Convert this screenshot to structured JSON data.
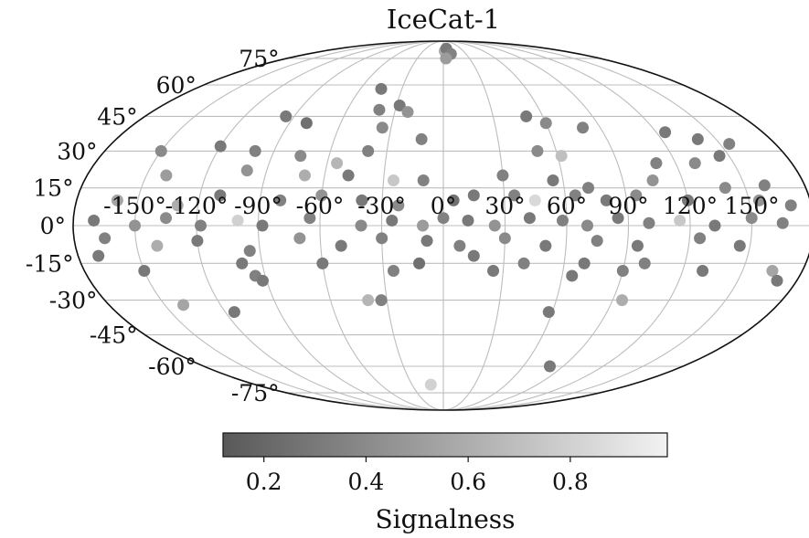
{
  "chart_data": {
    "type": "scatter",
    "projection": "mollweide",
    "title": "IceCat-1",
    "grid": true,
    "lon_ticks": [
      "-150°",
      "-120°",
      "-90°",
      "-60°",
      "-30°",
      "0°",
      "30°",
      "60°",
      "90°",
      "120°",
      "150°"
    ],
    "lat_ticks": [
      "75°",
      "60°",
      "45°",
      "30°",
      "15°",
      "0°",
      "-15°",
      "-30°",
      "-45°",
      "-60°",
      "-75°"
    ],
    "colorbar": {
      "label": "Signalness",
      "range": [
        0.12,
        0.99
      ],
      "ticks": [
        "0.2",
        "0.4",
        "0.6",
        "0.8"
      ],
      "colors": [
        "#595959",
        "#f2f2f2"
      ]
    },
    "marker_color_scale": "grey",
    "points_note": "lon / lat in degrees, s = signalness",
    "points": [
      {
        "lon": 2,
        "lat": 80,
        "s": 0.6
      },
      {
        "lon": 5,
        "lat": 82,
        "s": 0.3
      },
      {
        "lon": 10,
        "lat": 78,
        "s": 0.35
      },
      {
        "lon": 3,
        "lat": 75,
        "s": 0.5
      },
      {
        "lon": -45,
        "lat": 58,
        "s": 0.3
      },
      {
        "lon": -40,
        "lat": 48,
        "s": 0.35
      },
      {
        "lon": -28,
        "lat": 50,
        "s": 0.3
      },
      {
        "lon": -22,
        "lat": 47,
        "s": 0.45
      },
      {
        "lon": -95,
        "lat": 45,
        "s": 0.3
      },
      {
        "lon": -80,
        "lat": 42,
        "s": 0.25
      },
      {
        "lon": -35,
        "lat": 40,
        "s": 0.4
      },
      {
        "lon": -12,
        "lat": 35,
        "s": 0.35
      },
      {
        "lon": 50,
        "lat": 45,
        "s": 0.3
      },
      {
        "lon": 60,
        "lat": 42,
        "s": 0.4
      },
      {
        "lon": 80,
        "lat": 40,
        "s": 0.35
      },
      {
        "lon": 125,
        "lat": 38,
        "s": 0.3
      },
      {
        "lon": 140,
        "lat": 35,
        "s": 0.3
      },
      {
        "lon": 155,
        "lat": 33,
        "s": 0.35
      },
      {
        "lon": -150,
        "lat": 30,
        "s": 0.4
      },
      {
        "lon": -120,
        "lat": 32,
        "s": 0.3
      },
      {
        "lon": -100,
        "lat": 30,
        "s": 0.35
      },
      {
        "lon": -75,
        "lat": 28,
        "s": 0.4
      },
      {
        "lon": -55,
        "lat": 25,
        "s": 0.65
      },
      {
        "lon": -40,
        "lat": 30,
        "s": 0.35
      },
      {
        "lon": 50,
        "lat": 30,
        "s": 0.4
      },
      {
        "lon": 62,
        "lat": 28,
        "s": 0.7
      },
      {
        "lon": 110,
        "lat": 25,
        "s": 0.35
      },
      {
        "lon": 130,
        "lat": 25,
        "s": 0.4
      },
      {
        "lon": 145,
        "lat": 28,
        "s": 0.3
      },
      {
        "lon": -140,
        "lat": 20,
        "s": 0.5
      },
      {
        "lon": -100,
        "lat": 22,
        "s": 0.45
      },
      {
        "lon": -70,
        "lat": 20,
        "s": 0.6
      },
      {
        "lon": -48,
        "lat": 20,
        "s": 0.3
      },
      {
        "lon": -25,
        "lat": 18,
        "s": 0.75
      },
      {
        "lon": -10,
        "lat": 18,
        "s": 0.35
      },
      {
        "lon": 30,
        "lat": 20,
        "s": 0.35
      },
      {
        "lon": 55,
        "lat": 18,
        "s": 0.3
      },
      {
        "lon": 72,
        "lat": 15,
        "s": 0.35
      },
      {
        "lon": 105,
        "lat": 18,
        "s": 0.45
      },
      {
        "lon": 140,
        "lat": 15,
        "s": 0.4
      },
      {
        "lon": 160,
        "lat": 16,
        "s": 0.35
      },
      {
        "lon": -160,
        "lat": 10,
        "s": 0.55
      },
      {
        "lon": -130,
        "lat": 8,
        "s": 0.6
      },
      {
        "lon": -110,
        "lat": 12,
        "s": 0.3
      },
      {
        "lon": -80,
        "lat": 10,
        "s": 0.35
      },
      {
        "lon": -60,
        "lat": 12,
        "s": 0.45
      },
      {
        "lon": -40,
        "lat": 10,
        "s": 0.3
      },
      {
        "lon": -22,
        "lat": 8,
        "s": 0.4
      },
      {
        "lon": 5,
        "lat": 10,
        "s": 0.25
      },
      {
        "lon": 15,
        "lat": 12,
        "s": 0.3
      },
      {
        "lon": 35,
        "lat": 12,
        "s": 0.35
      },
      {
        "lon": 45,
        "lat": 10,
        "s": 0.85
      },
      {
        "lon": 65,
        "lat": 12,
        "s": 0.35
      },
      {
        "lon": 80,
        "lat": 10,
        "s": 0.3
      },
      {
        "lon": 95,
        "lat": 12,
        "s": 0.4
      },
      {
        "lon": 120,
        "lat": 10,
        "s": 0.3
      },
      {
        "lon": 155,
        "lat": 10,
        "s": 0.45
      },
      {
        "lon": 170,
        "lat": 8,
        "s": 0.35
      },
      {
        "lon": -170,
        "lat": 2,
        "s": 0.3
      },
      {
        "lon": -150,
        "lat": 0,
        "s": 0.45
      },
      {
        "lon": -135,
        "lat": 3,
        "s": 0.4
      },
      {
        "lon": -118,
        "lat": 0,
        "s": 0.35
      },
      {
        "lon": -100,
        "lat": 2,
        "s": 0.8
      },
      {
        "lon": -88,
        "lat": 0,
        "s": 0.3
      },
      {
        "lon": -65,
        "lat": 3,
        "s": 0.35
      },
      {
        "lon": -40,
        "lat": 0,
        "s": 0.4
      },
      {
        "lon": -25,
        "lat": 2,
        "s": 0.3
      },
      {
        "lon": -10,
        "lat": 0,
        "s": 0.5
      },
      {
        "lon": 0,
        "lat": 3,
        "s": 0.35
      },
      {
        "lon": 12,
        "lat": 2,
        "s": 0.3
      },
      {
        "lon": 25,
        "lat": 0,
        "s": 0.45
      },
      {
        "lon": 42,
        "lat": 3,
        "s": 0.3
      },
      {
        "lon": 58,
        "lat": 2,
        "s": 0.35
      },
      {
        "lon": 70,
        "lat": 0,
        "s": 0.4
      },
      {
        "lon": 85,
        "lat": 3,
        "s": 0.3
      },
      {
        "lon": 100,
        "lat": 1,
        "s": 0.35
      },
      {
        "lon": 115,
        "lat": 2,
        "s": 0.75
      },
      {
        "lon": 132,
        "lat": 0,
        "s": 0.3
      },
      {
        "lon": 150,
        "lat": 3,
        "s": 0.4
      },
      {
        "lon": 165,
        "lat": 1,
        "s": 0.35
      },
      {
        "lon": -165,
        "lat": -5,
        "s": 0.35
      },
      {
        "lon": -140,
        "lat": -8,
        "s": 0.6
      },
      {
        "lon": -120,
        "lat": -6,
        "s": 0.3
      },
      {
        "lon": -95,
        "lat": -10,
        "s": 0.35
      },
      {
        "lon": -70,
        "lat": -5,
        "s": 0.45
      },
      {
        "lon": -50,
        "lat": -8,
        "s": 0.3
      },
      {
        "lon": -30,
        "lat": -5,
        "s": 0.35
      },
      {
        "lon": -8,
        "lat": -6,
        "s": 0.3
      },
      {
        "lon": 8,
        "lat": -8,
        "s": 0.35
      },
      {
        "lon": 30,
        "lat": -5,
        "s": 0.4
      },
      {
        "lon": 50,
        "lat": -8,
        "s": 0.3
      },
      {
        "lon": 75,
        "lat": -6,
        "s": 0.35
      },
      {
        "lon": 95,
        "lat": -8,
        "s": 0.3
      },
      {
        "lon": 125,
        "lat": -5,
        "s": 0.35
      },
      {
        "lon": 145,
        "lat": -8,
        "s": 0.3
      },
      {
        "lon": -170,
        "lat": -12,
        "s": 0.3
      },
      {
        "lon": -100,
        "lat": -15,
        "s": 0.3
      },
      {
        "lon": -60,
        "lat": -15,
        "s": 0.3
      },
      {
        "lon": -12,
        "lat": -15,
        "s": 0.25
      },
      {
        "lon": 15,
        "lat": -12,
        "s": 0.3
      },
      {
        "lon": 40,
        "lat": -15,
        "s": 0.35
      },
      {
        "lon": 70,
        "lat": -15,
        "s": 0.3
      },
      {
        "lon": 100,
        "lat": -15,
        "s": 0.35
      },
      {
        "lon": 130,
        "lat": -18,
        "s": 0.3
      },
      {
        "lon": -150,
        "lat": -18,
        "s": 0.3
      },
      {
        "lon": -95,
        "lat": -20,
        "s": 0.35
      },
      {
        "lon": -92,
        "lat": -22,
        "s": 0.3
      },
      {
        "lon": -25,
        "lat": -18,
        "s": 0.35
      },
      {
        "lon": 25,
        "lat": -18,
        "s": 0.3
      },
      {
        "lon": 65,
        "lat": -20,
        "s": 0.3
      },
      {
        "lon": 90,
        "lat": -18,
        "s": 0.35
      },
      {
        "lon": 165,
        "lat": -18,
        "s": 0.55
      },
      {
        "lon": 170,
        "lat": -22,
        "s": 0.3
      },
      {
        "lon": -140,
        "lat": -32,
        "s": 0.55
      },
      {
        "lon": -115,
        "lat": -35,
        "s": 0.3
      },
      {
        "lon": -40,
        "lat": -30,
        "s": 0.65
      },
      {
        "lon": -33,
        "lat": -30,
        "s": 0.35
      },
      {
        "lon": 58,
        "lat": -35,
        "s": 0.3
      },
      {
        "lon": 95,
        "lat": -30,
        "s": 0.6
      },
      {
        "lon": 80,
        "lat": -60,
        "s": 0.3
      },
      {
        "lon": -12,
        "lat": -70,
        "s": 0.8
      }
    ]
  }
}
